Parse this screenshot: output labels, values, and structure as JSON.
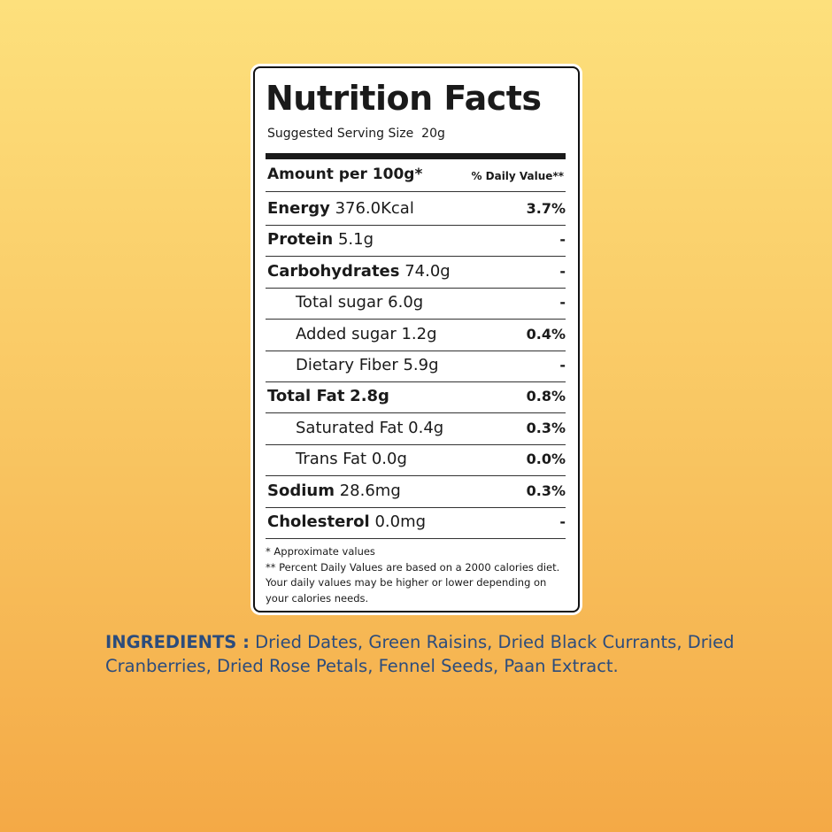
{
  "title": "Nutrition Facts",
  "serving": "Suggested Serving Size  20g",
  "header": {
    "amount": "Amount per 100g*",
    "daily_value": "% Daily Value**"
  },
  "rows": [
    {
      "name": "Energy",
      "amount": "376.0Kcal",
      "dv": "3.7%",
      "style": "main"
    },
    {
      "name": "Protein",
      "amount": "5.1g",
      "dv": "-",
      "style": "main"
    },
    {
      "name": "Carbohydrates",
      "amount": "74.0g",
      "dv": "-",
      "style": "main"
    },
    {
      "name": "Total sugar",
      "amount": "6.0g",
      "dv": "-",
      "style": "sub"
    },
    {
      "name": "Added sugar",
      "amount": "1.2g",
      "dv": "0.4%",
      "style": "sub"
    },
    {
      "name": "Dietary Fiber",
      "amount": "5.9g",
      "dv": "-",
      "style": "sub"
    },
    {
      "name": "Total Fat",
      "amount": "2.8g",
      "dv": "0.8%",
      "style": "main-bold"
    },
    {
      "name": "Saturated Fat",
      "amount": "0.4g",
      "dv": "0.3%",
      "style": "sub"
    },
    {
      "name": "Trans Fat",
      "amount": "0.0g",
      "dv": "0.0%",
      "style": "sub"
    },
    {
      "name": "Sodium",
      "amount": "28.6mg",
      "dv": "0.3%",
      "style": "main"
    },
    {
      "name": "Cholesterol",
      "amount": "0.0mg",
      "dv": "-",
      "style": "main"
    }
  ],
  "notes": [
    "* Approximate values",
    "** Percent Daily Values are based on a 2000 calories diet.",
    "Your daily values may be higher or lower depending on",
    "your calories needs."
  ],
  "ingredients": {
    "label": "INGREDIENTS :",
    "text": "Dried Dates, Green Raisins, Dried Black Currants, Dried Cranberries, Dried Rose Petals, Fennel Seeds, Paan Extract."
  }
}
